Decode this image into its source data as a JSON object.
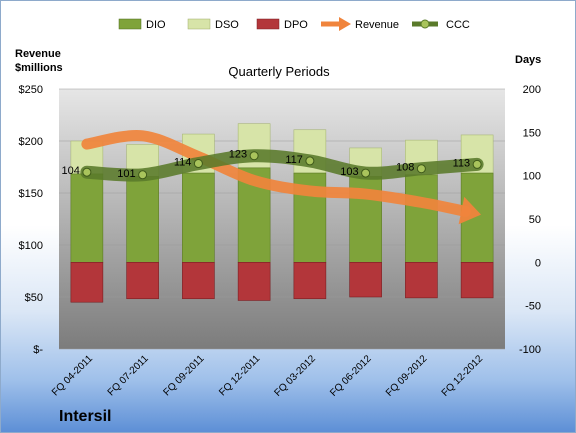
{
  "chart_data": {
    "type": "bar",
    "title": "Quarterly Periods",
    "company": "Intersil",
    "left_axis": {
      "title_line1": "Revenue",
      "title_line2": "$millions",
      "range": [
        0,
        250
      ],
      "tick_labels": [
        "$-",
        "$50",
        "$100",
        "$150",
        "$200",
        "$250"
      ]
    },
    "right_axis": {
      "title": "Days",
      "range": [
        -100,
        200
      ],
      "tick_labels": [
        "-100",
        "-50",
        "0",
        "50",
        "100",
        "150",
        "200"
      ]
    },
    "categories": [
      "FQ 04-2011",
      "FQ 07-2011",
      "FQ 09-2011",
      "FQ 12-2011",
      "FQ 03-2012",
      "FQ 06-2012",
      "FQ 09-2012",
      "FQ 12-2012"
    ],
    "series": [
      {
        "name": "DIO",
        "axis": "right",
        "kind": "bar",
        "color": "#7fa33a",
        "values": [
          102,
          99,
          103,
          109,
          103,
          99,
          101,
          103
        ]
      },
      {
        "name": "DSO",
        "axis": "right",
        "kind": "bar-stacked",
        "color": "#d7e4a8",
        "values": [
          38,
          37,
          45,
          51,
          50,
          33,
          40,
          44
        ]
      },
      {
        "name": "DPO",
        "axis": "right",
        "kind": "bar-negative",
        "color": "#b3363a",
        "values": [
          -46,
          -42,
          -42,
          -44,
          -42,
          -40,
          -41,
          -41
        ]
      },
      {
        "name": "Revenue",
        "axis": "left",
        "kind": "line-arrow",
        "color": "#f0843c",
        "values": [
          197,
          205,
          185,
          162,
          152,
          149,
          141,
          130
        ]
      },
      {
        "name": "CCC",
        "axis": "right",
        "kind": "line-markers",
        "color": "#5a7a2a",
        "values": [
          104,
          101,
          114,
          123,
          117,
          103,
          108,
          113
        ]
      }
    ],
    "ccc_labels": [
      "104",
      "101",
      "114",
      "123",
      "117",
      "103",
      "108",
      "113"
    ],
    "legend": {
      "position": "top",
      "items": [
        "DIO",
        "DSO",
        "DPO",
        "Revenue",
        "CCC"
      ]
    },
    "grid": true
  }
}
